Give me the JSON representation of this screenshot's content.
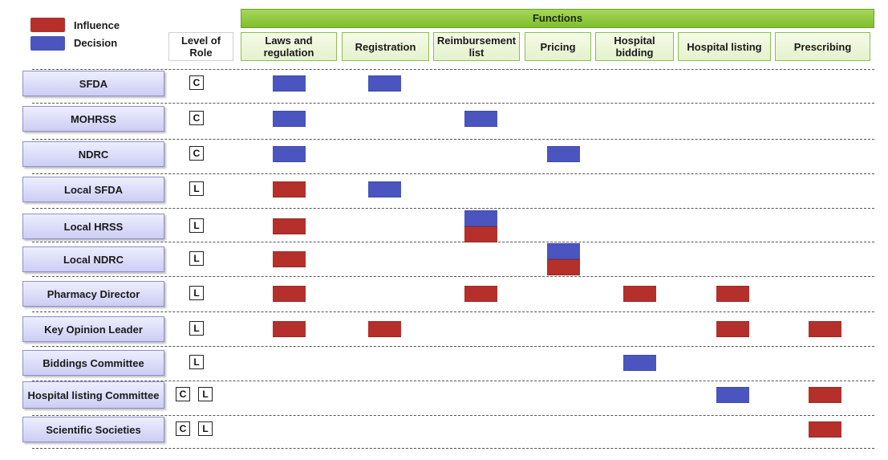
{
  "legend": {
    "influence": {
      "label": "Influence",
      "color": "#b5302b"
    },
    "decision": {
      "label": "Decision",
      "color": "#4b55c0"
    }
  },
  "functions_header": "Functions",
  "level_header": "Level of Role",
  "columns": [
    {
      "key": "laws",
      "label": "Laws and regulation"
    },
    {
      "key": "registration",
      "label": "Registration"
    },
    {
      "key": "reimbursement",
      "label": "Reimbursement list"
    },
    {
      "key": "pricing",
      "label": "Pricing"
    },
    {
      "key": "bidding",
      "label": "Hospital bidding"
    },
    {
      "key": "listing",
      "label": "Hospital listing"
    },
    {
      "key": "prescribing",
      "label": "Prescribing"
    }
  ],
  "rows": [
    {
      "actor": "SFDA",
      "levels": [
        "C"
      ],
      "cells": {
        "laws": [
          "decision"
        ],
        "registration": [
          "decision"
        ]
      }
    },
    {
      "actor": "MOHRSS",
      "levels": [
        "C"
      ],
      "cells": {
        "laws": [
          "decision"
        ],
        "reimbursement": [
          "decision"
        ]
      }
    },
    {
      "actor": "NDRC",
      "levels": [
        "C"
      ],
      "cells": {
        "laws": [
          "decision"
        ],
        "pricing": [
          "decision"
        ]
      }
    },
    {
      "actor": "Local SFDA",
      "levels": [
        "L"
      ],
      "cells": {
        "laws": [
          "influence"
        ],
        "registration": [
          "decision"
        ]
      }
    },
    {
      "actor": "Local HRSS",
      "levels": [
        "L"
      ],
      "cells": {
        "laws": [
          "influence"
        ],
        "reimbursement": [
          "decision",
          "influence"
        ]
      }
    },
    {
      "actor": "Local NDRC",
      "levels": [
        "L"
      ],
      "cells": {
        "laws": [
          "influence"
        ],
        "pricing": [
          "decision",
          "influence"
        ]
      }
    },
    {
      "actor": "Pharmacy Director",
      "levels": [
        "L"
      ],
      "cells": {
        "laws": [
          "influence"
        ],
        "reimbursement": [
          "influence"
        ],
        "bidding": [
          "influence"
        ],
        "listing": [
          "influence"
        ]
      }
    },
    {
      "actor": "Key Opinion Leader",
      "levels": [
        "L"
      ],
      "cells": {
        "laws": [
          "influence"
        ],
        "registration": [
          "influence"
        ],
        "listing": [
          "influence"
        ],
        "prescribing": [
          "influence"
        ]
      }
    },
    {
      "actor": "Biddings Committee",
      "levels": [
        "L"
      ],
      "cells": {
        "bidding": [
          "decision"
        ]
      }
    },
    {
      "actor": "Hospital listing Committee",
      "levels": [
        "C",
        "L"
      ],
      "cells": {
        "listing": [
          "decision"
        ],
        "prescribing": [
          "influence"
        ]
      }
    },
    {
      "actor": "Scientific Societies",
      "levels": [
        "C",
        "L"
      ],
      "cells": {
        "prescribing": [
          "influence"
        ]
      }
    }
  ]
}
